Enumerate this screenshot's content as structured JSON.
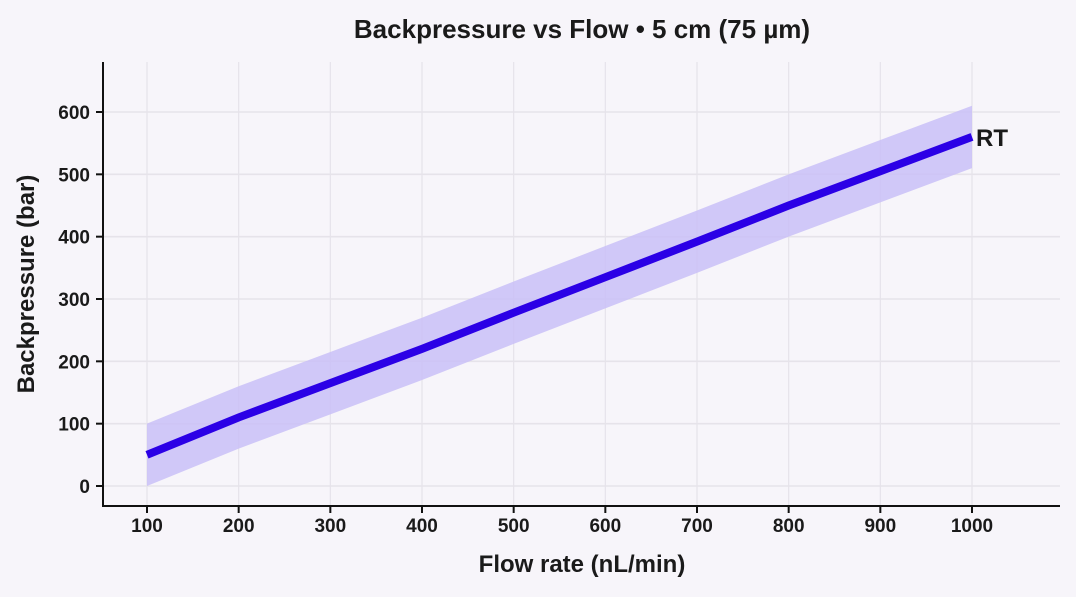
{
  "chart_data": {
    "type": "line",
    "title": "Backpressure vs Flow • 5 cm (75 µm)",
    "xlabel": "Flow rate (nL/min)",
    "ylabel": "Backpressure (bar)",
    "xlim": [
      50,
      1100
    ],
    "ylim": [
      -35,
      685
    ],
    "xticks": [
      100,
      200,
      300,
      400,
      500,
      600,
      700,
      800,
      900,
      1000
    ],
    "yticks": [
      0,
      100,
      200,
      300,
      400,
      500,
      600
    ],
    "grid": true,
    "series": [
      {
        "name": "RT",
        "x": [
          100,
          200,
          300,
          400,
          500,
          600,
          700,
          800,
          900,
          1000
        ],
        "y": [
          50,
          110,
          165,
          220,
          278,
          335,
          392,
          450,
          505,
          560
        ],
        "lower": [
          0,
          60,
          115,
          170,
          228,
          285,
          342,
          400,
          455,
          510
        ],
        "upper": [
          100,
          160,
          215,
          270,
          328,
          385,
          442,
          500,
          555,
          610
        ],
        "color": "#2b00e6",
        "ribbon_color": "#c9bff7"
      }
    ],
    "legend": "direct-label-end"
  }
}
